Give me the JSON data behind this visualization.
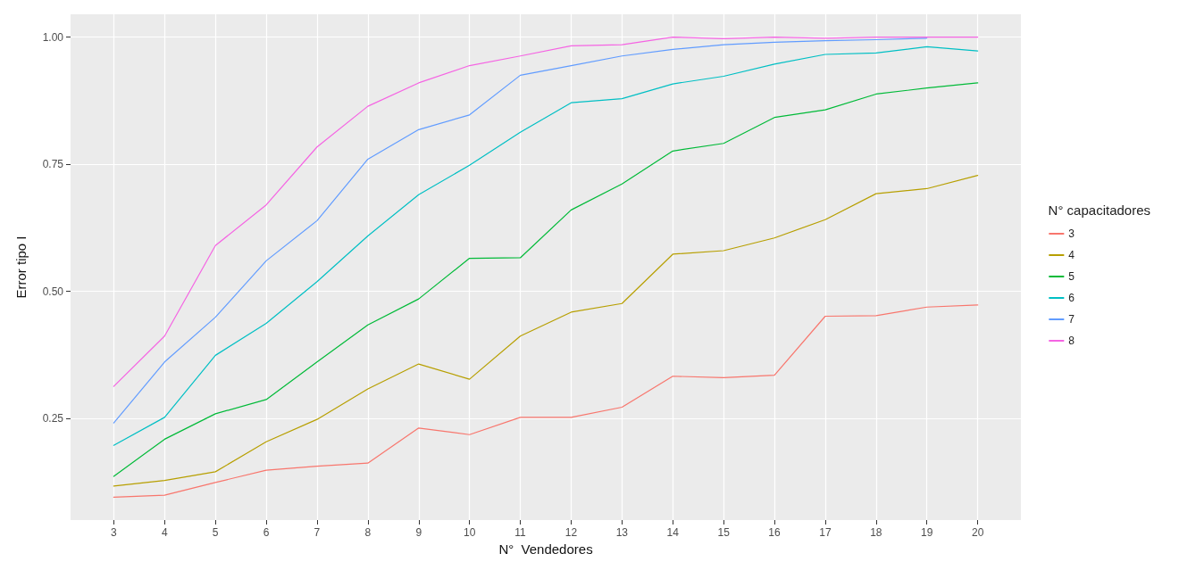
{
  "chart_data": {
    "type": "line",
    "xlabel": "N°  Vendedores",
    "ylabel": "Error tipo I",
    "legend_title": "N° capacitadores",
    "legend": "right",
    "grid": true,
    "marker": "none",
    "line_style": "solid",
    "x": [
      3,
      4,
      5,
      6,
      7,
      8,
      9,
      10,
      11,
      12,
      13,
      14,
      15,
      16,
      17,
      18,
      19,
      20
    ],
    "xlim": [
      2.15,
      20.85
    ],
    "xticks": [
      3,
      4,
      5,
      6,
      7,
      8,
      9,
      10,
      11,
      12,
      13,
      14,
      15,
      16,
      17,
      18,
      19,
      20
    ],
    "ylim": [
      0.05,
      1.045
    ],
    "yticks": [
      {
        "value": 0.25,
        "label": "0.25"
      },
      {
        "value": 0.5,
        "label": "0.50"
      },
      {
        "value": 0.75,
        "label": "0.75"
      },
      {
        "value": 1,
        "label": "1.00"
      }
    ],
    "series": [
      {
        "name": "3",
        "color": "#f8766d",
        "values": [
          0.095,
          0.099,
          0.124,
          0.148,
          0.156,
          0.162,
          0.231,
          0.218,
          0.252,
          0.252,
          0.272,
          0.333,
          0.33,
          0.335,
          0.451,
          0.452,
          0.469,
          0.473
        ]
      },
      {
        "name": "4",
        "color": "#b79f00",
        "values": [
          0.117,
          0.128,
          0.145,
          0.204,
          0.248,
          0.308,
          0.357,
          0.327,
          0.412,
          0.459,
          0.476,
          0.573,
          0.58,
          0.605,
          0.641,
          0.692,
          0.702,
          0.728
        ]
      },
      {
        "name": "5",
        "color": "#00ba38",
        "values": [
          0.136,
          0.209,
          0.259,
          0.287,
          0.361,
          0.434,
          0.485,
          0.565,
          0.566,
          0.66,
          0.711,
          0.776,
          0.791,
          0.842,
          0.857,
          0.888,
          0.9,
          0.91
        ]
      },
      {
        "name": "6",
        "color": "#00bfc4",
        "values": [
          0.197,
          0.252,
          0.374,
          0.437,
          0.519,
          0.609,
          0.69,
          0.748,
          0.813,
          0.871,
          0.879,
          0.908,
          0.923,
          0.947,
          0.966,
          0.969,
          0.981,
          0.973
        ]
      },
      {
        "name": "7",
        "color": "#619cff",
        "values": [
          0.241,
          0.361,
          0.449,
          0.56,
          0.639,
          0.76,
          0.818,
          0.847,
          0.925,
          0.944,
          0.963,
          0.976,
          0.985,
          0.99,
          0.993,
          0.995,
          0.998,
          null
        ]
      },
      {
        "name": "8",
        "color": "#f564e3",
        "values": [
          0.313,
          0.412,
          0.59,
          0.67,
          0.784,
          0.864,
          0.91,
          0.944,
          0.963,
          0.983,
          0.985,
          1.0,
          0.997,
          1.0,
          0.998,
          1.0,
          1.0,
          1.0
        ]
      }
    ]
  }
}
